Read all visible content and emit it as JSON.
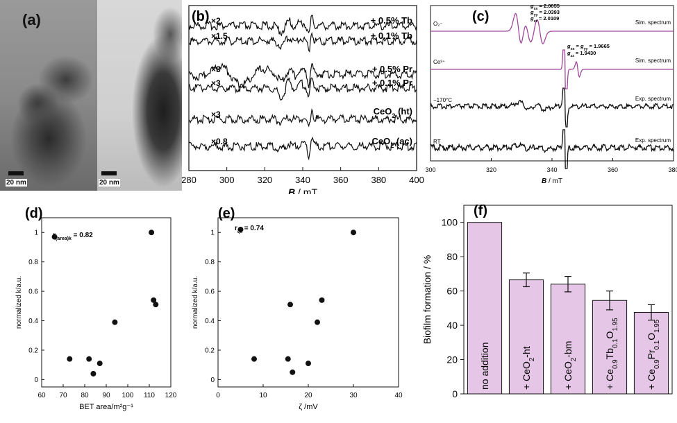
{
  "panels": {
    "a": {
      "label": "(a)",
      "scalebar_left": "20 nm",
      "scalebar_right": "20 nm"
    },
    "b": {
      "label": "(b)",
      "xlabel": "B",
      "xunit": " / mT",
      "xlim": [
        280,
        400
      ],
      "xticks": [
        280,
        300,
        320,
        340,
        360,
        380,
        400
      ],
      "traces": [
        {
          "factor": "×2",
          "name": "+ 0.5% Tb"
        },
        {
          "factor": "×1.5",
          "name": "+ 0.1% Tb"
        },
        {
          "factor": "×3",
          "name": "+ 0.5% Pr"
        },
        {
          "factor": "×3",
          "name": "+ 0.1% Pr"
        },
        {
          "factor": "×3",
          "name": "CeO",
          "sub": "2",
          "suffix": " (ht)"
        },
        {
          "factor": "×0.8",
          "name": "CeO",
          "sub": "2",
          "suffix": " (ac)"
        }
      ]
    },
    "c": {
      "label": "(c)",
      "xlabel": "B",
      "xunit": " / mT",
      "xlim": [
        300,
        380
      ],
      "xticks": [
        300,
        320,
        340,
        360,
        380
      ],
      "gtensor_superoxide": {
        "gxx": "2.0655",
        "gyy": "2.0393",
        "gzz": "2.0109"
      },
      "gtensor_ce3": {
        "gxx_gyy": "1.9665",
        "gzz": "1.9430"
      },
      "traces": [
        {
          "left": "O₂⁻",
          "right": "Sim. spectrum",
          "color": "#a0479a"
        },
        {
          "left": "Ce³⁺",
          "right": "Sim. spectrum",
          "color": "#a0479a"
        },
        {
          "left": "−170°C",
          "right": "Exp. spectrum",
          "color": "#111111"
        },
        {
          "left": "RT",
          "right": "Exp. spectrum",
          "color": "#111111"
        }
      ]
    }
  },
  "chart_data": [
    {
      "id": "d",
      "label": "(d)",
      "type": "scatter",
      "xlabel": "BET area/m²g⁻¹",
      "ylabel": "normalized k/a.u.",
      "annotation_text": "r",
      "annotation_sub": "(area)k",
      "annotation_value": " = 0.82",
      "xlim": [
        60,
        120
      ],
      "ylim": [
        -0.05,
        1.1
      ],
      "xticks": [
        60,
        70,
        80,
        90,
        100,
        110,
        120
      ],
      "yticks": [
        0,
        0.2,
        0.4,
        0.6,
        0.8,
        1
      ],
      "points": [
        {
          "x": 66,
          "y": 0.97
        },
        {
          "x": 73,
          "y": 0.14
        },
        {
          "x": 82,
          "y": 0.14
        },
        {
          "x": 84,
          "y": 0.04
        },
        {
          "x": 87,
          "y": 0.11
        },
        {
          "x": 94,
          "y": 0.39
        },
        {
          "x": 111,
          "y": 1.0
        },
        {
          "x": 112,
          "y": 0.54
        },
        {
          "x": 113,
          "y": 0.51
        }
      ]
    },
    {
      "id": "e",
      "label": "(e)",
      "type": "scatter",
      "xlabel": "ζ /mV",
      "ylabel": "normalized k/a.u.",
      "annotation_text": "r",
      "annotation_sub": "ζk",
      "annotation_value": " = 0.74",
      "xlim": [
        0,
        40
      ],
      "ylim": [
        -0.05,
        1.1
      ],
      "xticks": [
        0,
        10,
        20,
        30,
        40
      ],
      "yticks": [
        0,
        0.2,
        0.4,
        0.6,
        0.8,
        1
      ],
      "points": [
        {
          "x": 5,
          "y": 1.02
        },
        {
          "x": 8,
          "y": 0.14
        },
        {
          "x": 15.5,
          "y": 0.14
        },
        {
          "x": 16,
          "y": 0.51
        },
        {
          "x": 16.5,
          "y": 0.05
        },
        {
          "x": 20,
          "y": 0.11
        },
        {
          "x": 22,
          "y": 0.39
        },
        {
          "x": 23,
          "y": 0.54
        },
        {
          "x": 30,
          "y": 1.0
        }
      ]
    },
    {
      "id": "f",
      "label": "(f)",
      "type": "bar",
      "ylabel": "Biofilm formation / %",
      "ylim": [
        0,
        110
      ],
      "yticks": [
        0,
        20,
        40,
        60,
        80,
        100
      ],
      "bar_color": "#e6c6e6",
      "bars": [
        {
          "label_parts": [
            [
              "no addition",
              ""
            ]
          ],
          "value": 100,
          "error": 0
        },
        {
          "label_parts": [
            [
              "+ CeO",
              ""
            ],
            [
              "2",
              "sub"
            ],
            [
              "-ht",
              ""
            ]
          ],
          "value": 66.5,
          "error": 4
        },
        {
          "label_parts": [
            [
              "+ CeO",
              ""
            ],
            [
              "2",
              "sub"
            ],
            [
              "-bm",
              ""
            ]
          ],
          "value": 64,
          "error": 4.5
        },
        {
          "label_parts": [
            [
              "+ Ce",
              ""
            ],
            [
              "0.9",
              "sub"
            ],
            [
              "Tb",
              ""
            ],
            [
              "0.1",
              "sub"
            ],
            [
              "O",
              ""
            ],
            [
              "1.95",
              "sub"
            ]
          ],
          "value": 54.5,
          "error": 5.5
        },
        {
          "label_parts": [
            [
              "+ Ce",
              ""
            ],
            [
              "0.9",
              "sub"
            ],
            [
              "Pr",
              ""
            ],
            [
              "0.1",
              "sub"
            ],
            [
              "O",
              ""
            ],
            [
              "1.95",
              "sub"
            ]
          ],
          "value": 47.5,
          "error": 4.5
        }
      ]
    }
  ]
}
